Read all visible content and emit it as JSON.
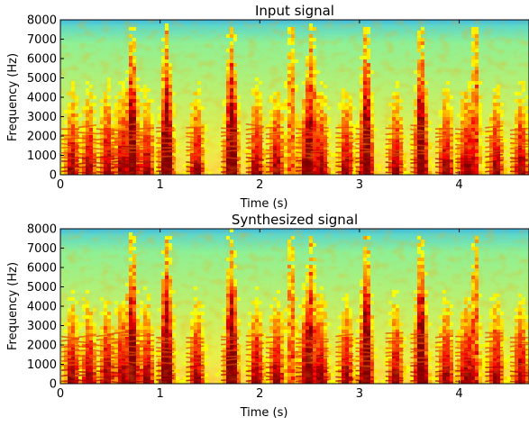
{
  "chart_data": [
    {
      "type": "heatmap",
      "title": "Input signal",
      "xlabel": "Time (s)",
      "ylabel": "Frequency (Hz)",
      "xlim": [
        0,
        4.7
      ],
      "ylim": [
        0,
        8000
      ],
      "x_ticks": [
        0,
        1,
        2,
        3,
        4
      ],
      "y_ticks": [
        0,
        1000,
        2000,
        3000,
        4000,
        5000,
        6000,
        7000,
        8000
      ],
      "colormap": "jet",
      "grid": false
    },
    {
      "type": "heatmap",
      "title": "Synthesized signal",
      "xlabel": "Time (s)",
      "ylabel": "Frequency (Hz)",
      "xlim": [
        0,
        4.7
      ],
      "ylim": [
        0,
        8000
      ],
      "x_ticks": [
        0,
        1,
        2,
        3,
        4
      ],
      "y_ticks": [
        0,
        1000,
        2000,
        3000,
        4000,
        5000,
        6000,
        7000,
        8000
      ],
      "colormap": "jet",
      "grid": false
    }
  ]
}
